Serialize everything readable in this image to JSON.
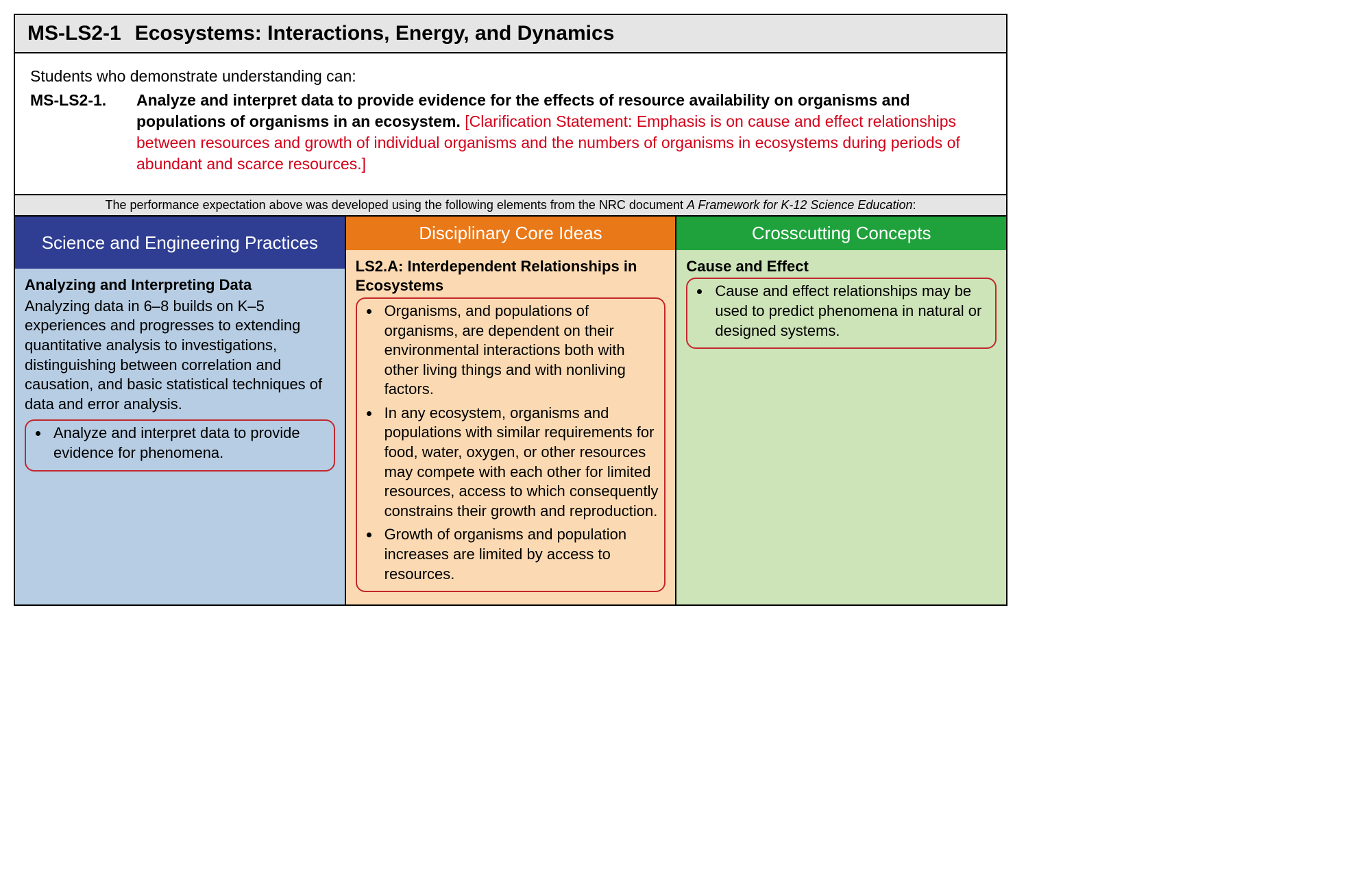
{
  "colors": {
    "title_bg": "#e5e5e5",
    "clarification_text": "#d4001a",
    "sep_bg": "#b7cde3",
    "dci_bg": "#fbdab3",
    "ccc_bg": "#cde3b8",
    "sep_header_bg": "#2f3e93",
    "dci_header_bg": "#e97818",
    "ccc_header_bg": "#1fa23c",
    "highlight_border": "#c1272d",
    "border": "#000000"
  },
  "title": {
    "code": "MS-LS2-1",
    "text": "Ecosystems: Interactions, Energy, and Dynamics"
  },
  "intro": {
    "lead": "Students who demonstrate understanding can:",
    "pe_code": "MS-LS2-1.",
    "pe_statement": "Analyze and interpret data to provide evidence for the effects of resource availability on organisms and populations of organisms in an ecosystem.",
    "clarification": "[Clarification Statement: Emphasis is on cause and effect relationships between resources and growth of individual organisms and the numbers of organisms in ecosystems during periods of abundant and scarce resources.]"
  },
  "framework_note": {
    "prefix": "The performance expectation above was developed using the following elements from the NRC document ",
    "doc": "A Framework for K-12 Science Education",
    "suffix": ":"
  },
  "columns": {
    "sep": {
      "header": "Science and Engineering Practices",
      "section_title": "Analyzing and Interpreting Data",
      "section_desc": "Analyzing data in 6–8 builds on K–5 experiences and progresses to extending quantitative analysis to investigations, distinguishing between correlation and causation, and basic statistical techniques of data and error analysis.",
      "highlight_bullets": [
        "Analyze and interpret data to provide evidence for phenomena."
      ]
    },
    "dci": {
      "header": "Disciplinary Core Ideas",
      "section_title": "LS2.A: Interdependent Relationships in Ecosystems",
      "highlight_bullets": [
        "Organisms, and populations of organisms, are dependent on their environmental interactions both with other living things and with nonliving factors.",
        "In any ecosystem, organisms and populations with similar requirements for food, water, oxygen, or other resources may compete with each other for limited resources, access to which consequently constrains their growth and reproduction.",
        "Growth of organisms and population increases are limited by access to resources."
      ]
    },
    "ccc": {
      "header": "Crosscutting Concepts",
      "section_title": "Cause and Effect",
      "highlight_bullets": [
        "Cause and effect relationships may be used to predict phenomena in natural or designed systems."
      ]
    }
  }
}
